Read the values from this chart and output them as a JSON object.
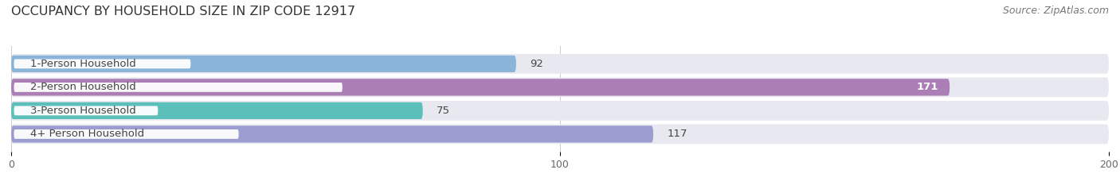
{
  "title": "OCCUPANCY BY HOUSEHOLD SIZE IN ZIP CODE 12917",
  "source": "Source: ZipAtlas.com",
  "categories": [
    "1-Person Household",
    "2-Person Household",
    "3-Person Household",
    "4+ Person Household"
  ],
  "values": [
    92,
    171,
    75,
    117
  ],
  "bar_colors": [
    "#8ab4d8",
    "#ab7eb5",
    "#5bbfba",
    "#9b9dd0"
  ],
  "value_label_colors": [
    "#555555",
    "#ffffff",
    "#555555",
    "#555555"
  ],
  "xlim": [
    0,
    200
  ],
  "xticks": [
    0,
    100,
    200
  ],
  "bar_height": 0.72,
  "background_color": "#ffffff",
  "bar_bg_color": "#e8e8f0",
  "title_fontsize": 11.5,
  "source_fontsize": 9,
  "label_fontsize": 9.5,
  "tick_fontsize": 9,
  "value_fontsize": 9.5
}
